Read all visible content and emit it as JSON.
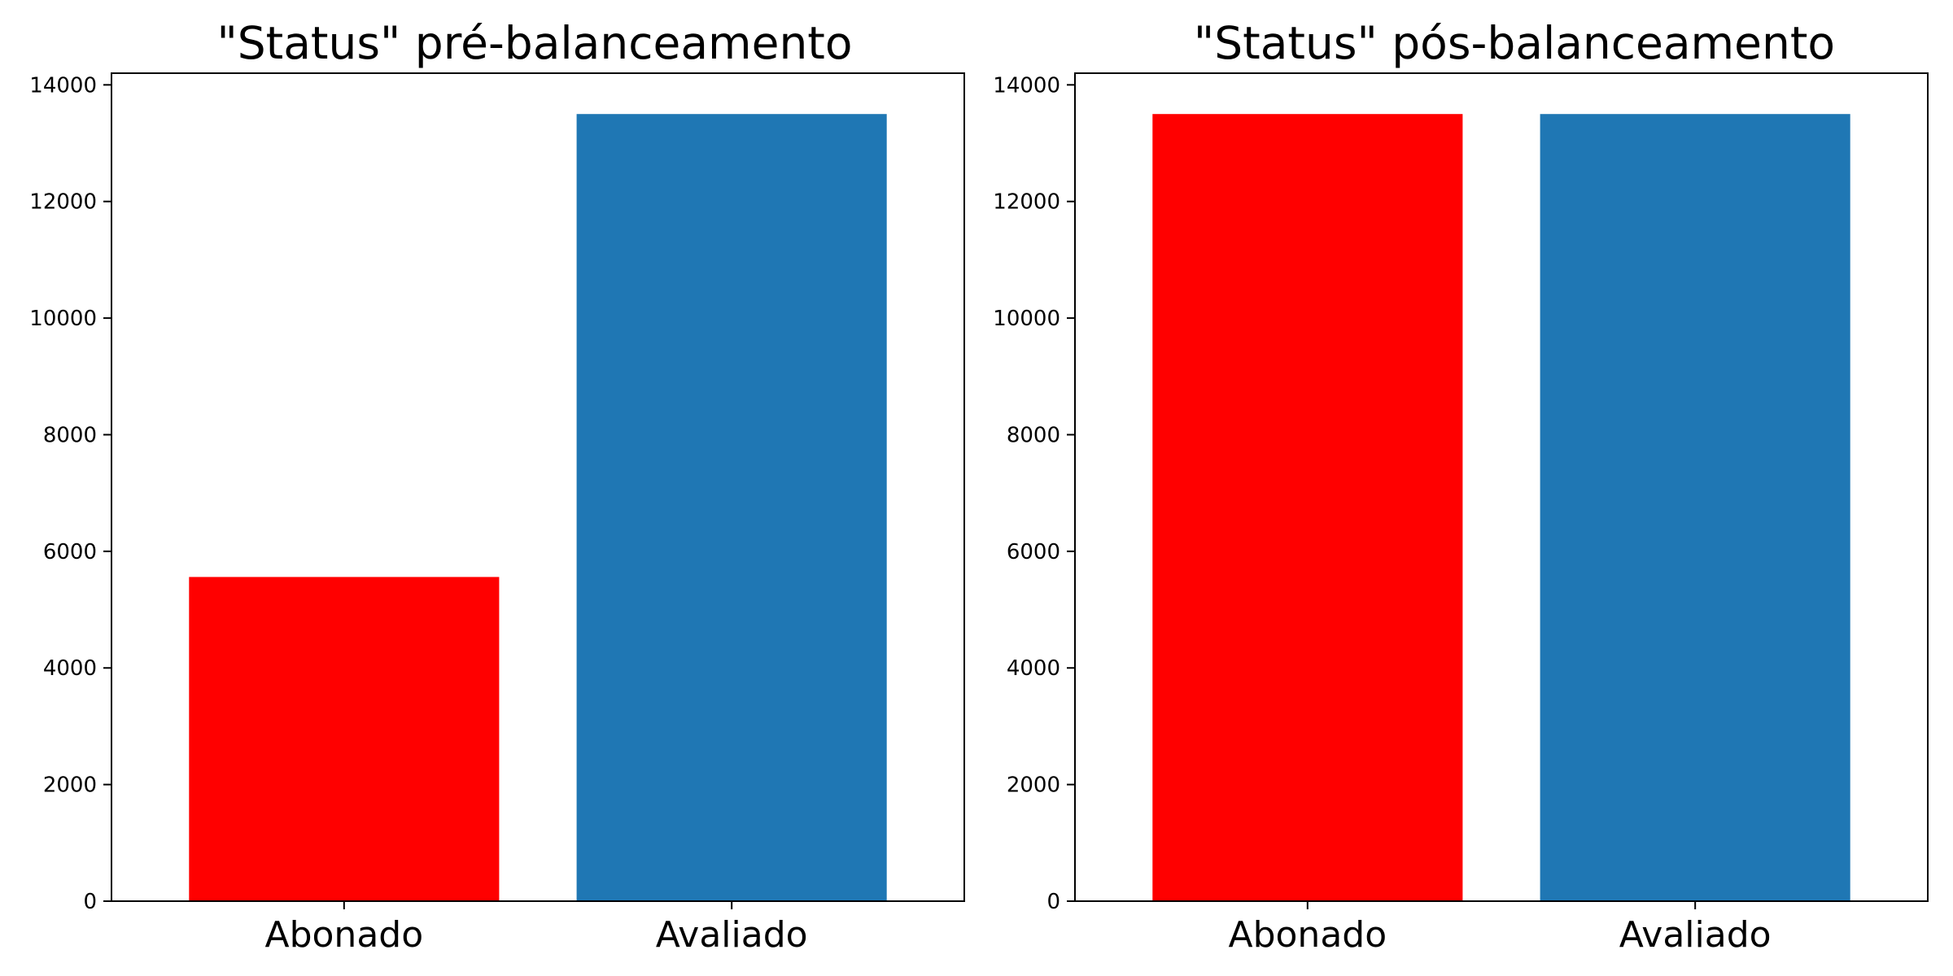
{
  "chart_data": [
    {
      "type": "bar",
      "title": "\"Status\" pré-balanceamento",
      "xlabel": "",
      "ylabel": "",
      "categories": [
        "Abonado",
        "Avaliado"
      ],
      "values": [
        5560,
        13500
      ],
      "colors": [
        "#ff0000",
        "#1f77b4"
      ],
      "ylim": [
        0,
        14200
      ],
      "yticks": [
        0,
        2000,
        4000,
        6000,
        8000,
        10000,
        12000,
        14000
      ],
      "grid": false,
      "legend": false
    },
    {
      "type": "bar",
      "title": "\"Status\" pós-balanceamento",
      "xlabel": "",
      "ylabel": "",
      "categories": [
        "Abonado",
        "Avaliado"
      ],
      "values": [
        13500,
        13500
      ],
      "colors": [
        "#ff0000",
        "#1f77b4"
      ],
      "ylim": [
        0,
        14200
      ],
      "yticks": [
        0,
        2000,
        4000,
        6000,
        8000,
        10000,
        12000,
        14000
      ],
      "grid": false,
      "legend": false
    }
  ]
}
